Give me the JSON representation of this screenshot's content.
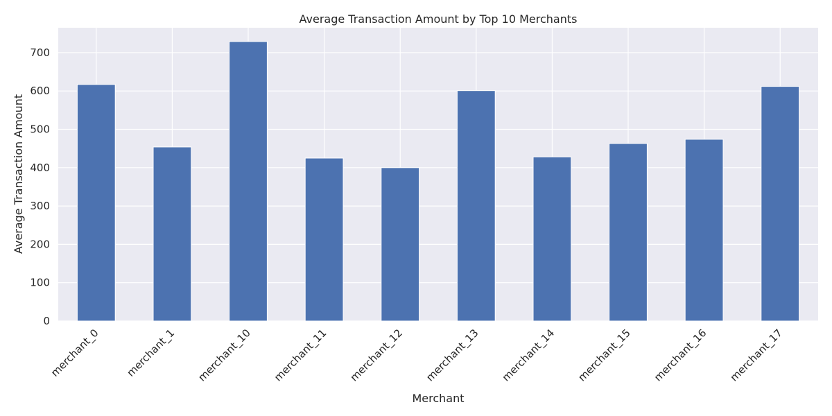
{
  "chart_data": {
    "type": "bar",
    "title": "Average Transaction Amount by Top 10 Merchants",
    "xlabel": "Merchant",
    "ylabel": "Average Transaction Amount",
    "categories": [
      "merchant_0",
      "merchant_1",
      "merchant_10",
      "merchant_11",
      "merchant_12",
      "merchant_13",
      "merchant_14",
      "merchant_15",
      "merchant_16",
      "merchant_17"
    ],
    "values": [
      617,
      454,
      729,
      425,
      400,
      601,
      428,
      463,
      474,
      612
    ],
    "ylim": [
      0,
      765
    ],
    "yticks": [
      0,
      100,
      200,
      300,
      400,
      500,
      600,
      700
    ],
    "grid": true,
    "bar_color": "#4c72b0",
    "background_color": "#eaeaf2"
  }
}
